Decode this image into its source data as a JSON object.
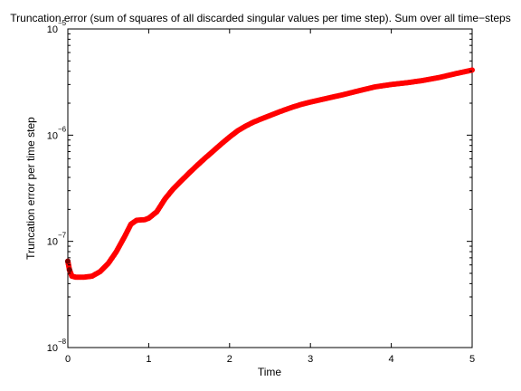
{
  "chart_data": {
    "type": "scatter",
    "title": "Truncation error (sum of squares of all discarded singular values per time step). Sum over all time−steps",
    "xlabel": "Time",
    "ylabel": "Truncation error per time step",
    "xlim": [
      0,
      5
    ],
    "ylim": [
      1e-08,
      1e-05
    ],
    "y_scale": "log",
    "grid": false,
    "x_ticks": [
      "0",
      "1",
      "2",
      "3",
      "4",
      "5"
    ],
    "y_ticks": [
      {
        "base": "10",
        "exp": "−8",
        "value": 1e-08
      },
      {
        "base": "10",
        "exp": "−7",
        "value": 1e-07
      },
      {
        "base": "10",
        "exp": "−6",
        "value": 1e-06
      },
      {
        "base": "10",
        "exp": "−5",
        "value": 1e-05
      }
    ],
    "series": [
      {
        "color": "#ff0000",
        "marker": "dot",
        "points": [
          [
            0.0,
            6.5e-08
          ],
          [
            0.02,
            5.4e-08
          ],
          [
            0.05,
            4.7e-08
          ],
          [
            0.1,
            4.6e-08
          ],
          [
            0.2,
            4.6e-08
          ],
          [
            0.3,
            4.7e-08
          ],
          [
            0.4,
            5.2e-08
          ],
          [
            0.5,
            6.2e-08
          ],
          [
            0.6,
            8e-08
          ],
          [
            0.7,
            1.1e-07
          ],
          [
            0.78,
            1.45e-07
          ],
          [
            0.85,
            1.58e-07
          ],
          [
            0.95,
            1.6e-07
          ],
          [
            1.0,
            1.65e-07
          ],
          [
            1.1,
            1.9e-07
          ],
          [
            1.2,
            2.5e-07
          ],
          [
            1.3,
            3.1e-07
          ],
          [
            1.4,
            3.7e-07
          ],
          [
            1.5,
            4.4e-07
          ],
          [
            1.6,
            5.2e-07
          ],
          [
            1.7,
            6.1e-07
          ],
          [
            1.8,
            7.1e-07
          ],
          [
            1.9,
            8.3e-07
          ],
          [
            2.0,
            9.6e-07
          ],
          [
            2.1,
            1.1e-06
          ],
          [
            2.2,
            1.22e-06
          ],
          [
            2.3,
            1.33e-06
          ],
          [
            2.4,
            1.43e-06
          ],
          [
            2.5,
            1.53e-06
          ],
          [
            2.6,
            1.64e-06
          ],
          [
            2.7,
            1.75e-06
          ],
          [
            2.8,
            1.86e-06
          ],
          [
            2.9,
            1.96e-06
          ],
          [
            3.0,
            2.05e-06
          ],
          [
            3.2,
            2.22e-06
          ],
          [
            3.4,
            2.4e-06
          ],
          [
            3.6,
            2.62e-06
          ],
          [
            3.8,
            2.85e-06
          ],
          [
            4.0,
            3e-06
          ],
          [
            4.2,
            3.12e-06
          ],
          [
            4.4,
            3.28e-06
          ],
          [
            4.6,
            3.5e-06
          ],
          [
            4.8,
            3.8e-06
          ],
          [
            5.0,
            4.1e-06
          ]
        ]
      },
      {
        "color": "#7a0000",
        "marker": "dot",
        "points": [
          [
            0.0,
            6.5e-08
          ],
          [
            0.02,
            5.4e-08
          ]
        ]
      }
    ]
  }
}
